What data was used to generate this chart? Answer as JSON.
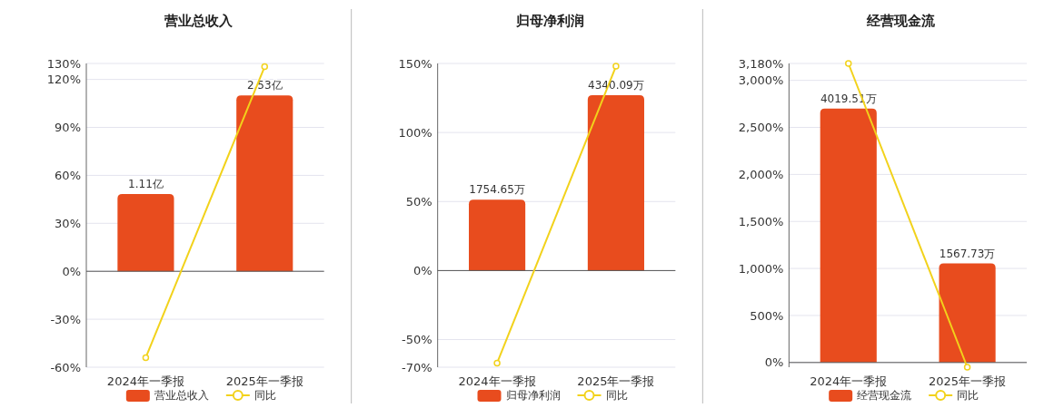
{
  "chart_data": [
    {
      "type": "bar",
      "title": "营业总收入",
      "categories": [
        "2024年一季报",
        "2025年一季报"
      ],
      "ylim": [
        -60,
        130
      ],
      "yticks": [
        {
          "value": -60,
          "label": "-60%"
        },
        {
          "value": -30,
          "label": "-30%"
        },
        {
          "value": 0,
          "label": "0%"
        },
        {
          "value": 30,
          "label": "30%"
        },
        {
          "value": 60,
          "label": "60%"
        },
        {
          "value": 90,
          "label": "90%"
        },
        {
          "value": 120,
          "label": "120%"
        },
        {
          "value": 130,
          "label": "130%"
        }
      ],
      "y2lim": [
        -1.38,
        2.99
      ],
      "tick_labels": "y",
      "grid": "y",
      "legend": "bottom",
      "marker": "circle",
      "series": [
        {
          "name": "营业总收入",
          "axis": "y2",
          "color": "#e84c1e",
          "values": [
            1.11,
            2.53
          ],
          "value_labels": [
            "1.11亿",
            "2.53亿"
          ]
        },
        {
          "name": "同比",
          "type": "line",
          "color": "#f2d21b",
          "values": [
            -54,
            128
          ]
        }
      ]
    },
    {
      "type": "bar",
      "title": "归母净利润",
      "categories": [
        "2024年一季报",
        "2025年一季报"
      ],
      "ylim": [
        -70,
        150
      ],
      "yticks": [
        {
          "value": -70,
          "label": "-70%"
        },
        {
          "value": -50,
          "label": "-50%"
        },
        {
          "value": 0,
          "label": "0%"
        },
        {
          "value": 50,
          "label": "50%"
        },
        {
          "value": 100,
          "label": "100%"
        },
        {
          "value": 150,
          "label": "150%"
        }
      ],
      "y2lim": [
        -2392,
        5126
      ],
      "tick_labels": "y",
      "grid": "y",
      "legend": "bottom",
      "marker": "circle",
      "series": [
        {
          "name": "归母净利润",
          "axis": "y2",
          "color": "#e84c1e",
          "values": [
            1754.65,
            4340.09
          ],
          "value_labels": [
            "1754.65万",
            "4340.09万"
          ]
        },
        {
          "name": "同比",
          "type": "line",
          "color": "#f2d21b",
          "values": [
            -67,
            148
          ]
        }
      ]
    },
    {
      "type": "bar",
      "title": "经营现金流",
      "categories": [
        "2024年一季报",
        "2025年一季报"
      ],
      "ylim": [
        -50,
        3180
      ],
      "yticks": [
        {
          "value": 0,
          "label": "0%"
        },
        {
          "value": 500,
          "label": "500%"
        },
        {
          "value": 1000,
          "label": "1,000%"
        },
        {
          "value": 1500,
          "label": "1,500%"
        },
        {
          "value": 2000,
          "label": "2,000%"
        },
        {
          "value": 2500,
          "label": "2,500%"
        },
        {
          "value": 3000,
          "label": "3,000%"
        },
        {
          "value": 3180,
          "label": "3,180%"
        }
      ],
      "y2lim": [
        -74,
        4734
      ],
      "tick_labels": "y",
      "grid": "y",
      "legend": "bottom",
      "marker": "circle",
      "series": [
        {
          "name": "经营现金流",
          "axis": "y2",
          "color": "#e84c1e",
          "values": [
            4019.51,
            1567.73
          ],
          "value_labels": [
            "4019.51万",
            "1567.73万"
          ]
        },
        {
          "name": "同比",
          "type": "line",
          "color": "#f2d21b",
          "values": [
            3180,
            -50
          ]
        }
      ]
    }
  ]
}
